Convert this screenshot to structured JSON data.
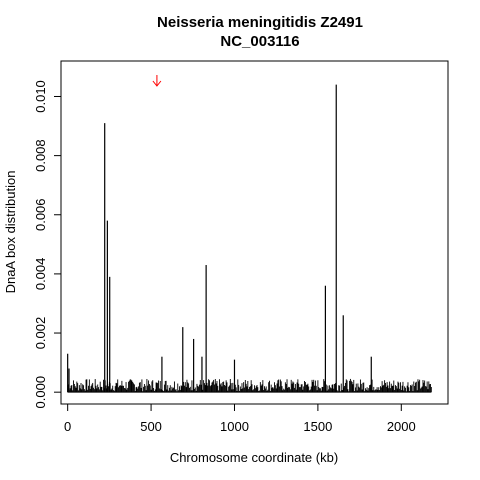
{
  "chart_data": {
    "type": "bar",
    "title": "Neisseria meningitidis Z2491",
    "subtitle": "NC_003116",
    "xlabel": "Chromosome coordinate (kb)",
    "ylabel": "DnaA box distribution",
    "xlim": [
      -40,
      2280
    ],
    "ylim": [
      -0.0004,
      0.0112
    ],
    "x_ticks": [
      0,
      500,
      1000,
      1500,
      2000
    ],
    "x_tick_labels": [
      "0",
      "500",
      "1000",
      "1500",
      "2000"
    ],
    "y_ticks": [
      0.0,
      0.002,
      0.004,
      0.006,
      0.008,
      0.01
    ],
    "y_tick_labels": [
      "0.000",
      "0.002",
      "0.004",
      "0.006",
      "0.008",
      "0.010"
    ],
    "grid": false,
    "bar_color": "#000000",
    "marker": {
      "x": 535,
      "color": "#ff0000",
      "icon": "down-arrow-icon"
    },
    "bins": {
      "x": [
        0,
        8,
        222,
        238,
        252,
        565,
        690,
        755,
        805,
        830,
        1000,
        1545,
        1610,
        1652,
        1820
      ],
      "y": [
        0.0013,
        0.0008,
        0.0091,
        0.0058,
        0.0039,
        0.0012,
        0.0022,
        0.0018,
        0.0012,
        0.0043,
        0.0011,
        0.0036,
        0.0104,
        0.0026,
        0.0012
      ]
    }
  }
}
